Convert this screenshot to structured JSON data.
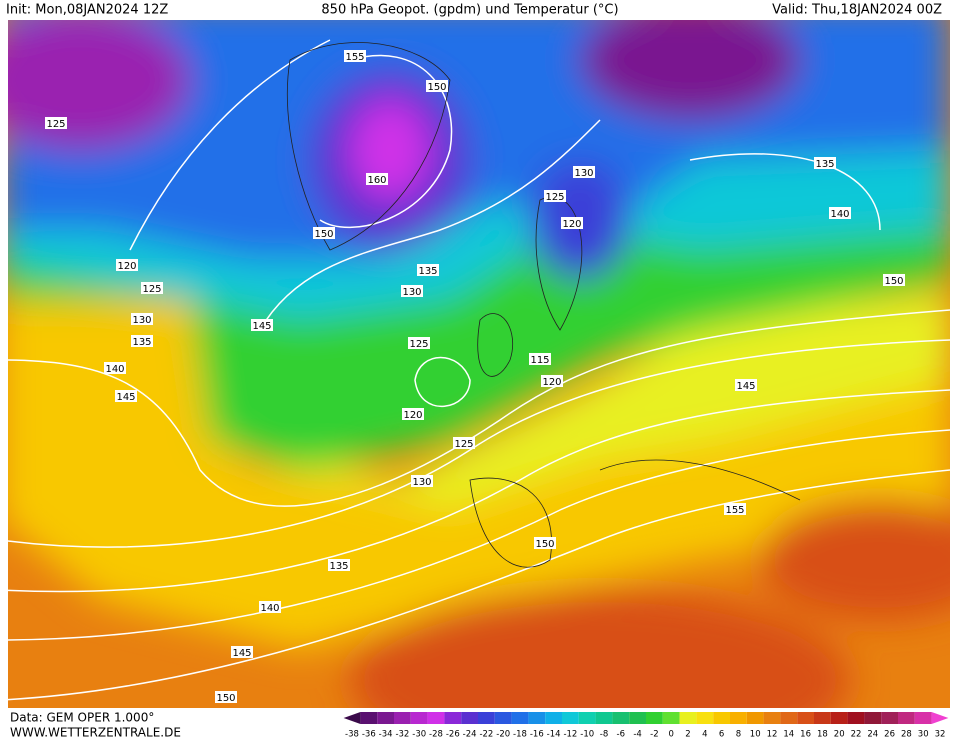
{
  "header": {
    "init": "Init: Mon,08JAN2024 12Z",
    "title": "850 hPa Geopot. (gpdm) und Temperatur (°C)",
    "valid": "Valid: Thu,18JAN2024 00Z"
  },
  "footer": {
    "source": "Data: GEM OPER 1.000°",
    "site": "WWW.WETTERZENTRALE.DE"
  },
  "legend": {
    "values": [
      -38,
      -36,
      -34,
      -32,
      -30,
      -28,
      -26,
      -24,
      -22,
      -20,
      -18,
      -16,
      -14,
      -12,
      -10,
      -8,
      -6,
      -4,
      -2,
      0,
      2,
      4,
      6,
      8,
      10,
      12,
      14,
      16,
      18,
      20,
      22,
      24,
      26,
      28,
      30,
      32
    ],
    "colors": [
      "#3a0a4a",
      "#5a1070",
      "#7a1890",
      "#9a20b0",
      "#b828d0",
      "#d030e8",
      "#8a28d8",
      "#5a30d0",
      "#3a40d8",
      "#2a58e0",
      "#2070e8",
      "#1890e8",
      "#10b0e8",
      "#10c8d8",
      "#10d0b0",
      "#10c890",
      "#18c070",
      "#20c050",
      "#30d030",
      "#60e030",
      "#e8f020",
      "#f8e010",
      "#f8c800",
      "#f8b000",
      "#f09800",
      "#e88010",
      "#e06818",
      "#d85018",
      "#c83818",
      "#b82018",
      "#a01020",
      "#901838",
      "#a02058",
      "#c02880",
      "#d830a8",
      "#f040d0"
    ]
  },
  "contour_labels": [
    155,
    150,
    160,
    125,
    150,
    120,
    125,
    130,
    135,
    140,
    145,
    145,
    130,
    135,
    125,
    120,
    125,
    130,
    135,
    140,
    145,
    150,
    150,
    155,
    115,
    120,
    130,
    125,
    120,
    135,
    140,
    150,
    145
  ]
}
